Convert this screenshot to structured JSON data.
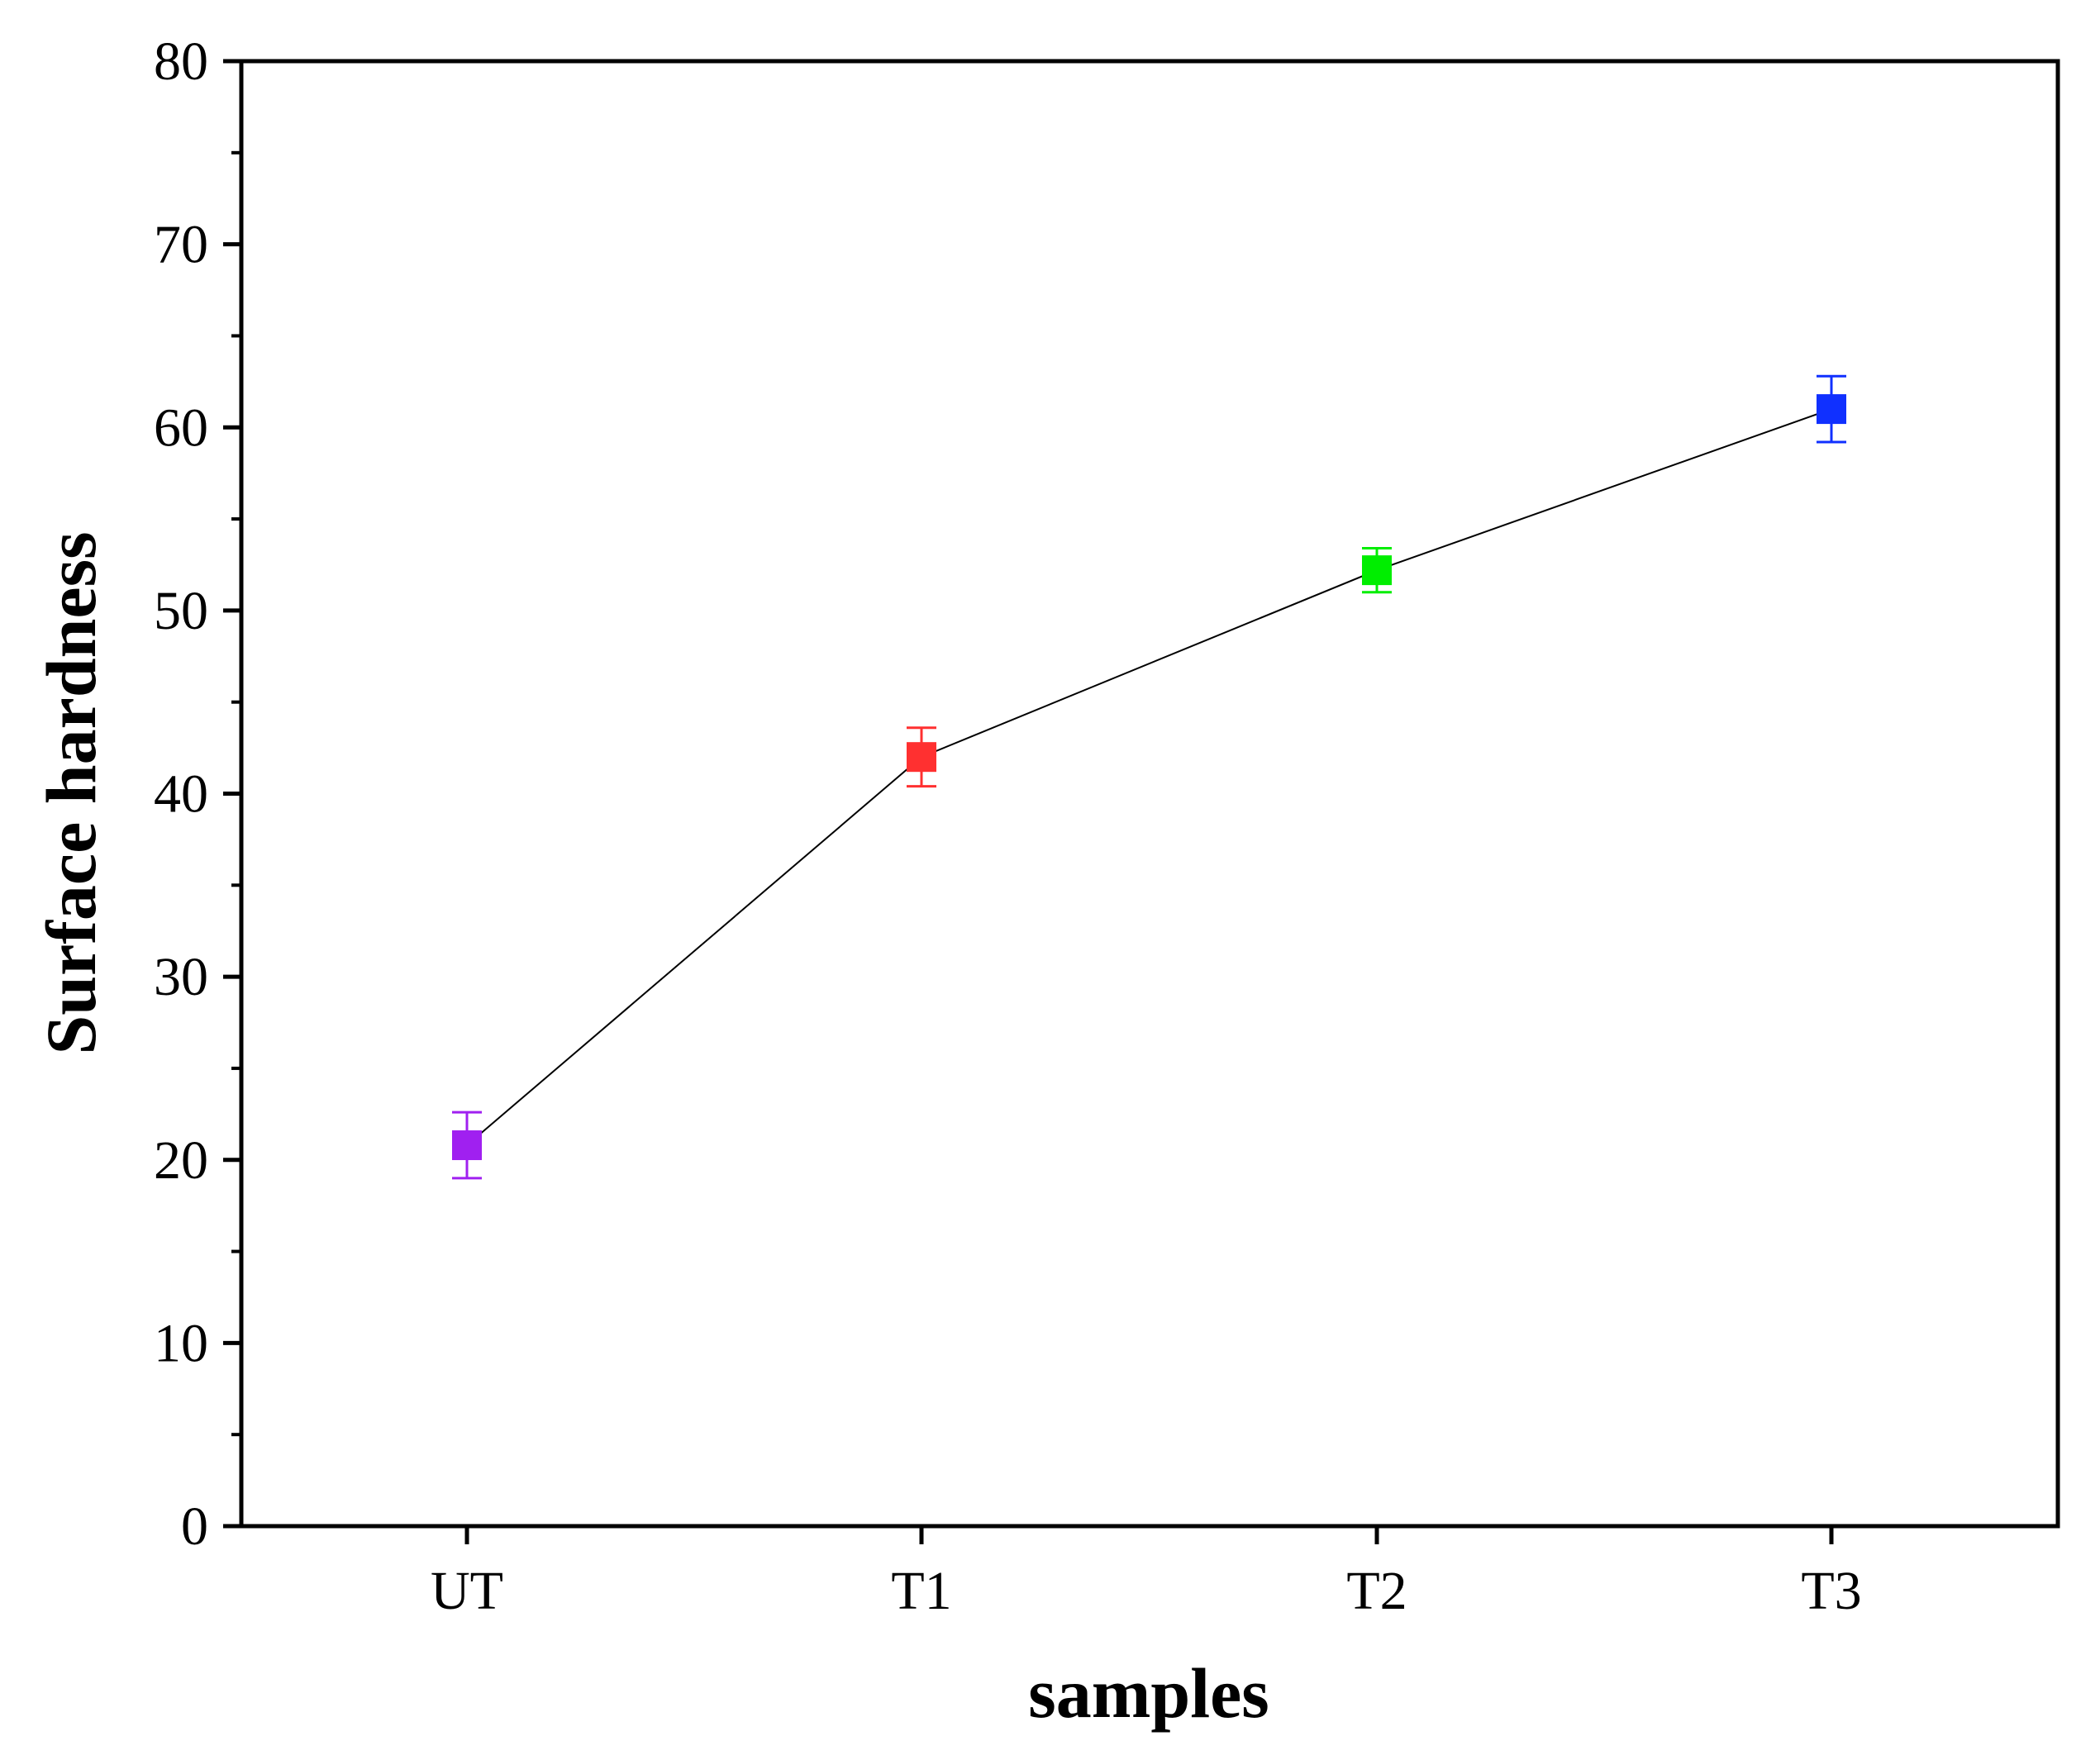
{
  "chart_data": {
    "type": "line",
    "title": "",
    "xlabel": "samples",
    "ylabel": "Surface hardness",
    "categories": [
      "UT",
      "T1",
      "T2",
      "T3"
    ],
    "series": [
      {
        "values": [
          20.8,
          42.0,
          52.2,
          61.0
        ],
        "errors": [
          1.8,
          1.6,
          1.2,
          1.8
        ],
        "point_colors": [
          "#a020f0",
          "#ff3030",
          "#00ee00",
          "#1030ff"
        ],
        "line_color": "#000000",
        "marker": "square"
      }
    ],
    "ylim": [
      0,
      80
    ],
    "yticks": [
      0,
      10,
      20,
      30,
      40,
      50,
      60,
      70,
      80
    ],
    "y_minor_step": 5,
    "grid": false,
    "legend": "none"
  }
}
